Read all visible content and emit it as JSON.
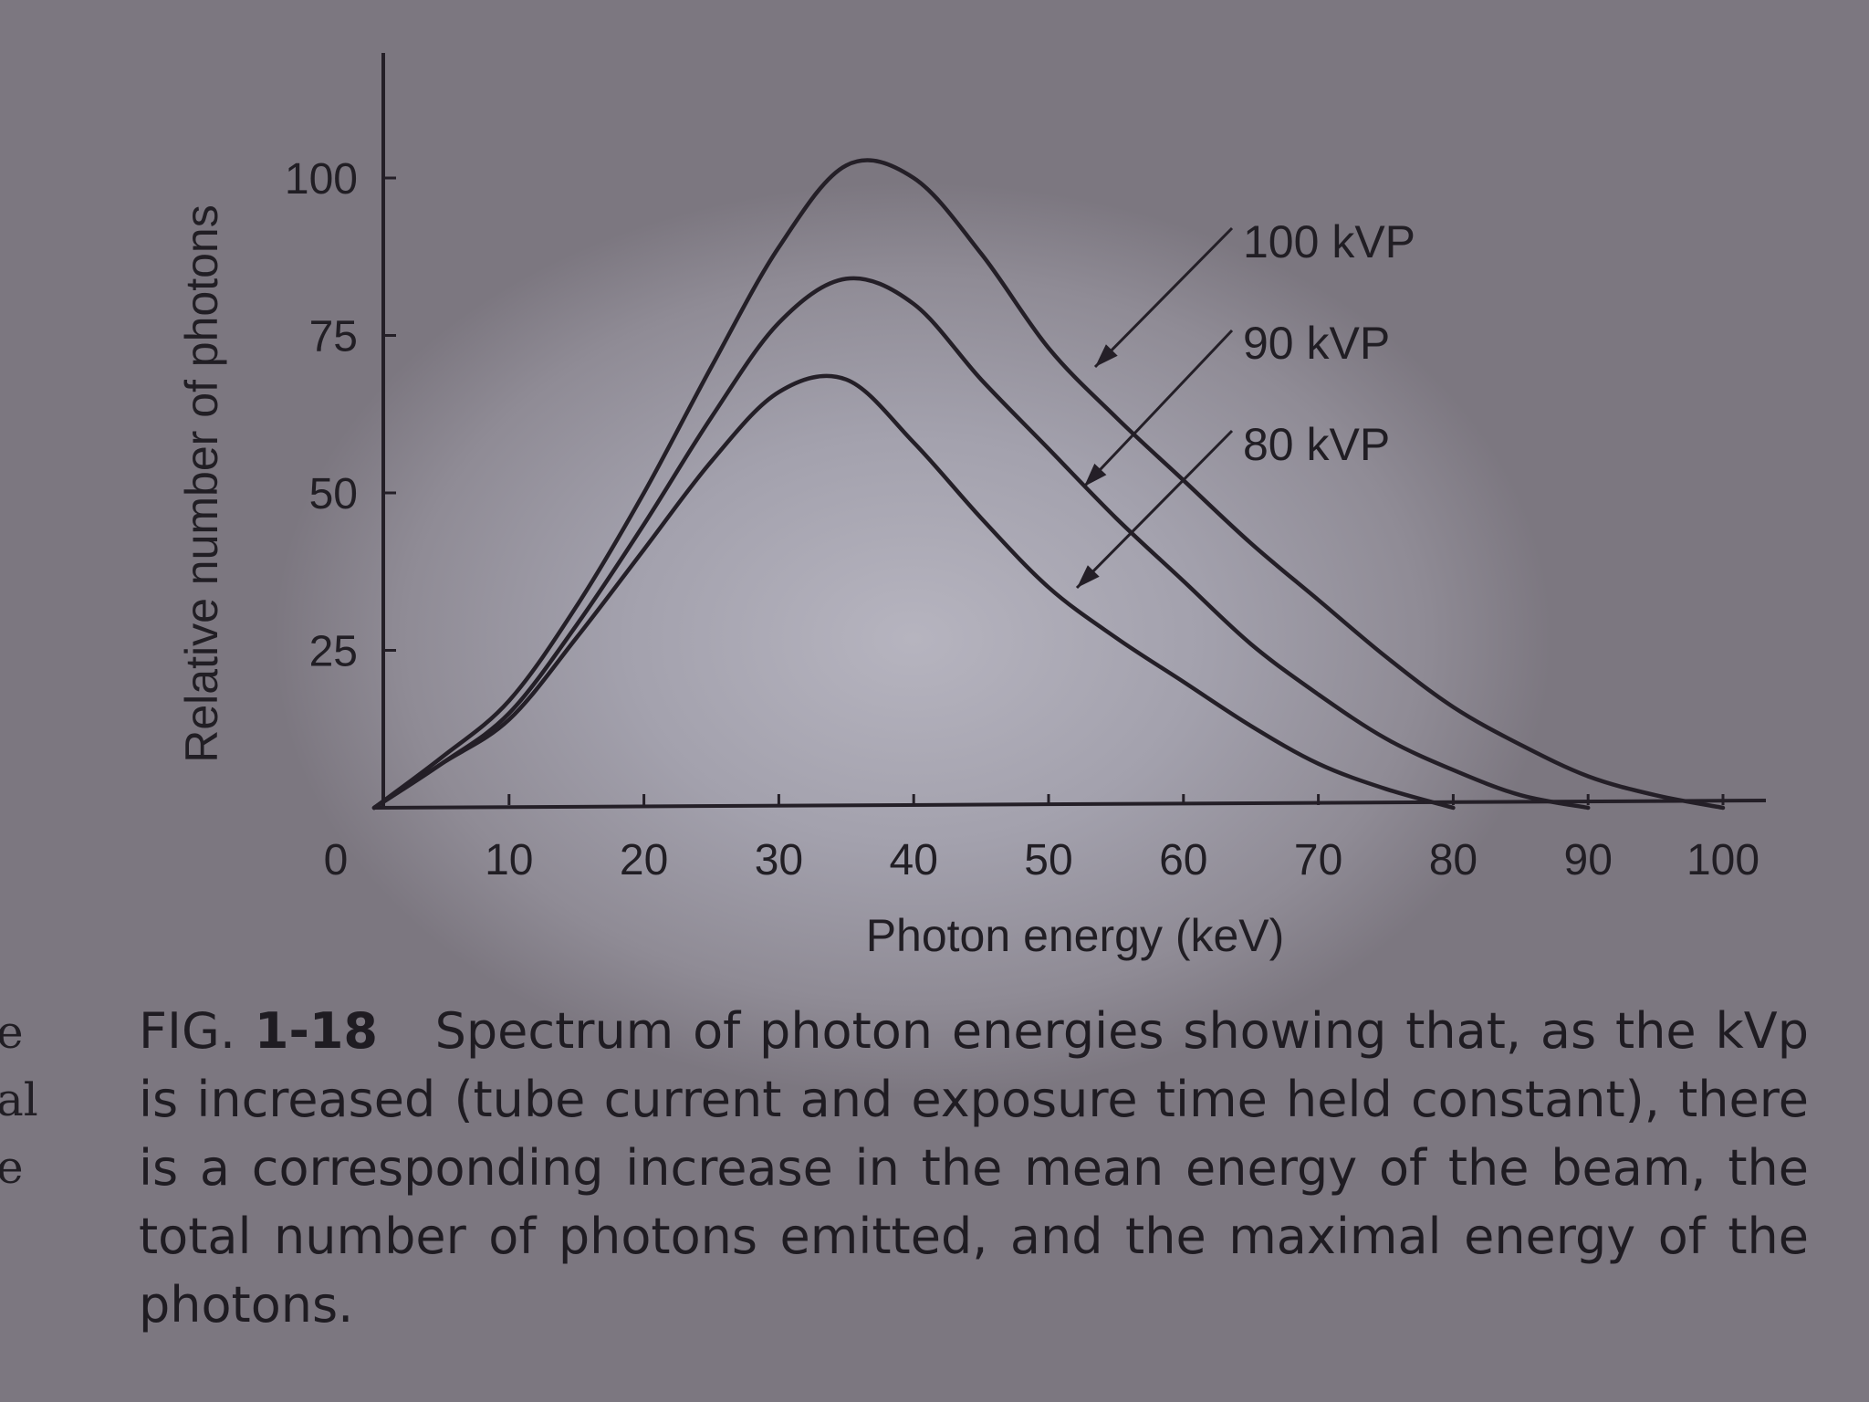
{
  "chart_data": {
    "type": "line",
    "xlabel": "Photon energy (keV)",
    "ylabel": "Relative number of photons",
    "xlim": [
      0,
      100
    ],
    "ylim": [
      0,
      100
    ],
    "x_ticks": [
      0,
      10,
      20,
      30,
      40,
      50,
      60,
      70,
      80,
      90,
      100
    ],
    "y_ticks": [
      25,
      50,
      75,
      100
    ],
    "legend": "annotations with arrows, top-right",
    "grid": false,
    "series": [
      {
        "name": "100 kVP",
        "x": [
          0,
          5,
          10,
          15,
          20,
          25,
          30,
          35,
          40,
          45,
          50,
          55,
          60,
          65,
          70,
          75,
          80,
          85,
          90,
          95,
          100
        ],
        "y": [
          0,
          8,
          17,
          32,
          50,
          70,
          89,
          102,
          100,
          88,
          73,
          62,
          52,
          42,
          33,
          24,
          16,
          10,
          5,
          2,
          0
        ]
      },
      {
        "name": "90 kVP",
        "x": [
          0,
          5,
          10,
          15,
          20,
          25,
          30,
          35,
          40,
          45,
          50,
          55,
          60,
          65,
          70,
          75,
          80,
          85,
          90
        ],
        "y": [
          0,
          7,
          15,
          29,
          45,
          62,
          77,
          84,
          80,
          68,
          57,
          46,
          36,
          26,
          18,
          11,
          6,
          2,
          0
        ]
      },
      {
        "name": "80 kVP",
        "x": [
          0,
          5,
          10,
          15,
          20,
          25,
          30,
          35,
          40,
          45,
          50,
          55,
          60,
          65,
          70,
          75,
          80
        ],
        "y": [
          0,
          7,
          14,
          27,
          41,
          55,
          66,
          68,
          58,
          46,
          35,
          27,
          20,
          13,
          7,
          3,
          0
        ]
      }
    ]
  },
  "caption": {
    "fig_prefix": "FIG.",
    "fig_number": "1-18",
    "text": "Spectrum of photon energies showing that, as the kVp is increased (tube current and exposure time held constant), there is a corresponding increase in the mean energy of the beam, the total number of photons emitted, and the maximal energy of the photons."
  },
  "margin_fragments": [
    "e",
    "al",
    "e"
  ]
}
